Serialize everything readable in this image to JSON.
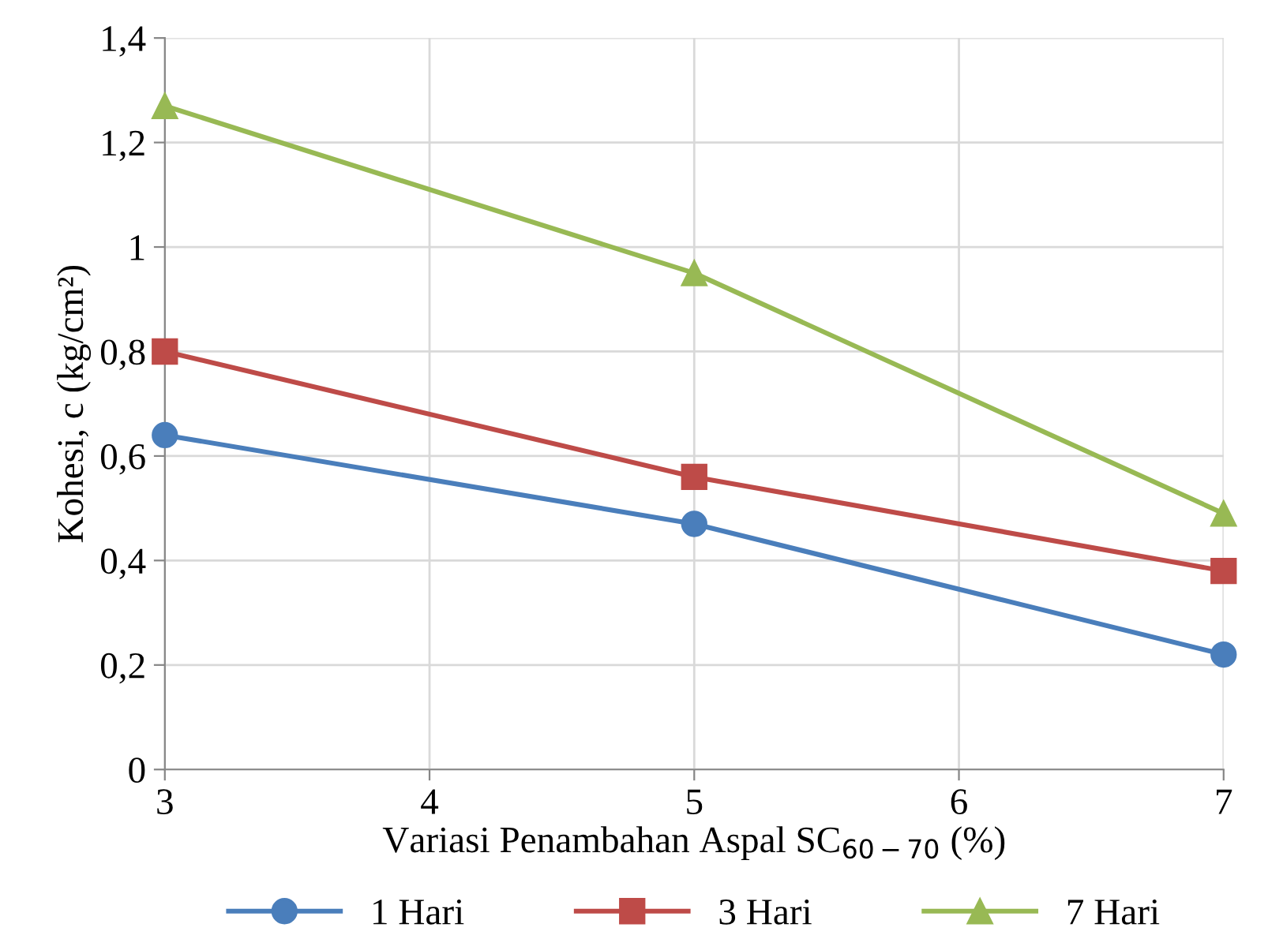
{
  "chart_data": {
    "type": "line",
    "xlabel": "Variasi Penambahan Aspal SC$_{60−70}$ (%)",
    "ylabel": "Kohesi, c (kg/cm²)",
    "x": [
      3,
      5,
      7
    ],
    "series": [
      {
        "name": "1 Hari",
        "color": "#4a7ebb",
        "marker": "circle",
        "values": [
          0.64,
          0.47,
          0.22
        ]
      },
      {
        "name": "3 Hari",
        "color": "#be4b48",
        "marker": "square",
        "values": [
          0.8,
          0.56,
          0.38
        ]
      },
      {
        "name": "7 Hari",
        "color": "#98b954",
        "marker": "triangle",
        "values": [
          1.27,
          0.95,
          0.49
        ]
      }
    ],
    "xlim": [
      3,
      7
    ],
    "xticks": [
      3,
      4,
      5,
      6,
      7
    ],
    "ylim": [
      0,
      1.4
    ],
    "yticks": [
      0,
      {
        "value": 0.2,
        "label": "0,2"
      },
      {
        "value": 0.4,
        "label": "0,4"
      },
      {
        "value": 0.6,
        "label": "0,6"
      },
      {
        "value": 0.8,
        "label": "0,8"
      },
      1,
      {
        "value": 1.2,
        "label": "1,2"
      },
      {
        "value": 1.4,
        "label": "1,4"
      }
    ],
    "grid": true,
    "legend": "bottom",
    "line_style": "solid"
  }
}
